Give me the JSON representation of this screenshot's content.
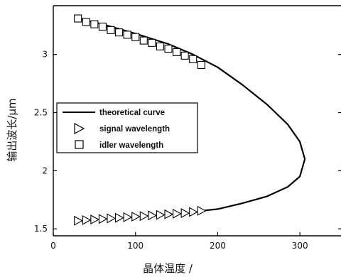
{
  "chart_data": {
    "type": "line",
    "title": "",
    "xlabel": "晶体温度 /",
    "ylabel": "输出波长/μm",
    "xlim": [
      0,
      350
    ],
    "ylim": [
      1.44,
      3.42
    ],
    "x_ticks": [
      "0",
      "100",
      "200",
      "300"
    ],
    "y_ticks": [
      "1.5",
      "2",
      "2.5",
      "3"
    ],
    "legend": {
      "placement": "center-left",
      "entries": [
        "theoretical curve",
        "signal wavelength",
        "idler wavelength"
      ]
    },
    "series": [
      {
        "name": "theoretical curve",
        "type": "line",
        "color": "#000000",
        "points": [
          [
            30,
            3.31
          ],
          [
            60,
            3.26
          ],
          [
            100,
            3.18
          ],
          [
            140,
            3.09
          ],
          [
            170,
            3.0
          ],
          [
            200,
            2.89
          ],
          [
            230,
            2.74
          ],
          [
            260,
            2.57
          ],
          [
            285,
            2.4
          ],
          [
            300,
            2.25
          ],
          [
            306,
            2.1
          ],
          [
            300,
            1.95
          ],
          [
            285,
            1.86
          ],
          [
            260,
            1.78
          ],
          [
            230,
            1.72
          ],
          [
            200,
            1.67
          ],
          [
            180,
            1.655
          ]
        ]
      },
      {
        "name": "signal wavelength",
        "type": "scatter",
        "marker": "triangle-right",
        "x": [
          30,
          40,
          50,
          60,
          70,
          80,
          90,
          100,
          110,
          120,
          130,
          140,
          150,
          160,
          170,
          180
        ],
        "y": [
          1.57,
          1.575,
          1.58,
          1.585,
          1.59,
          1.595,
          1.6,
          1.605,
          1.61,
          1.615,
          1.62,
          1.625,
          1.63,
          1.635,
          1.645,
          1.655
        ]
      },
      {
        "name": "idler wavelength",
        "type": "scatter",
        "marker": "square",
        "x": [
          30,
          40,
          50,
          60,
          70,
          80,
          90,
          100,
          110,
          120,
          130,
          140,
          150,
          160,
          170,
          180
        ],
        "y": [
          3.31,
          3.28,
          3.26,
          3.24,
          3.21,
          3.19,
          3.17,
          3.15,
          3.12,
          3.1,
          3.07,
          3.05,
          3.02,
          2.99,
          2.96,
          2.91
        ]
      }
    ]
  }
}
